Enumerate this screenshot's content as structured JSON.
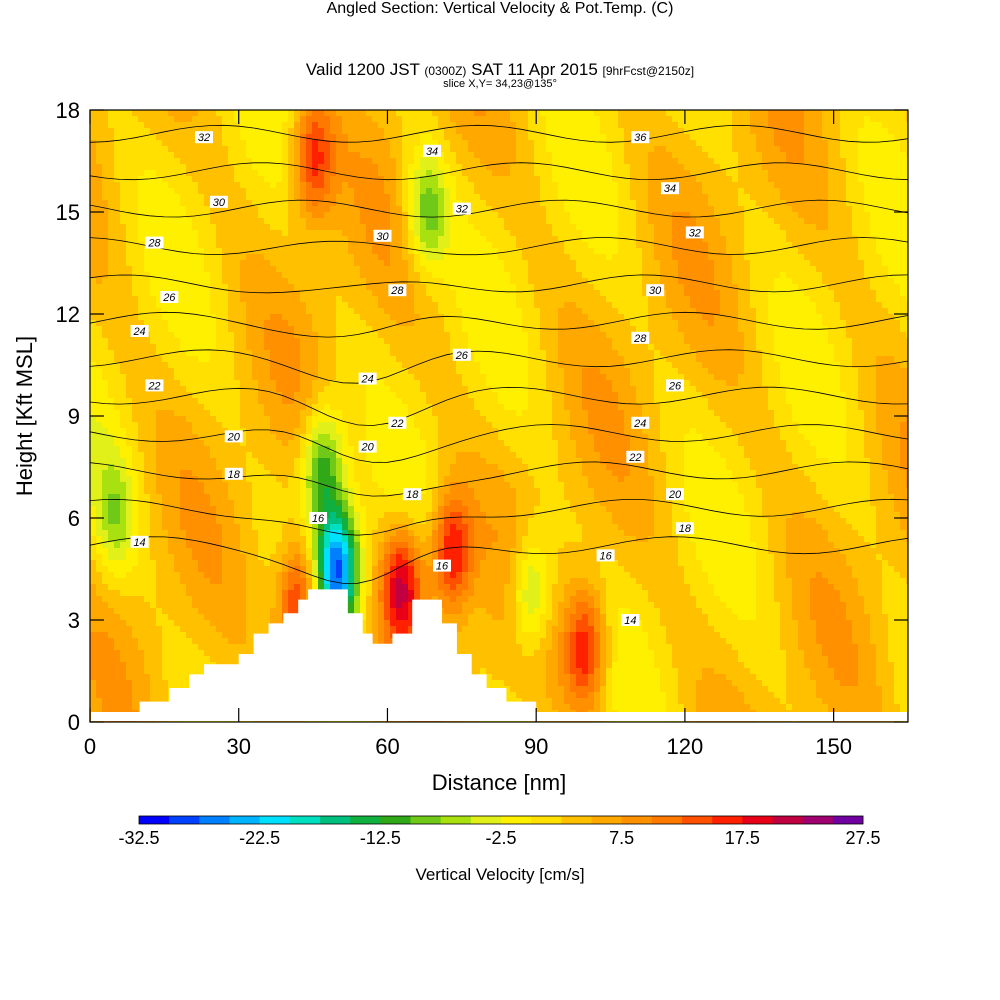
{
  "header": {
    "title": "Angled Section: Vertical Velocity & Pot.Temp.",
    "title_tag": "(C)",
    "valid_main": "Valid 1200 JST",
    "valid_utc": "(0300Z)",
    "valid_date": "SAT 11 Apr 2015",
    "forecast": "[9hrFcst@2150z]",
    "slice": "slice X,Y= 34,23@135°"
  },
  "chart_data": {
    "type": "heatmap",
    "subtype": "vertical cross-section, filled contours with line contours",
    "xlabel": "Distance [nm]",
    "ylabel": "Height [Kft MSL]",
    "xlim": [
      0,
      165
    ],
    "ylim": [
      0,
      18
    ],
    "x_ticks": [
      0,
      30,
      60,
      90,
      120,
      150
    ],
    "y_ticks": [
      0,
      3,
      6,
      9,
      12,
      15,
      18
    ],
    "fill_variable": "Vertical Velocity [cm/s]",
    "colorbar": {
      "label": "Vertical Velocity [cm/s]",
      "tick_labels": [
        "-32.5",
        "-22.5",
        "-12.5",
        "-2.5",
        "7.5",
        "17.5",
        "27.5"
      ],
      "min": -32.5,
      "max": 27.5,
      "step": 2.5,
      "colors": [
        "#0000ff",
        "#0040ff",
        "#0080ff",
        "#00b4ff",
        "#00e0ff",
        "#00e0c0",
        "#00c080",
        "#10b040",
        "#30a818",
        "#70c818",
        "#a8e010",
        "#e0f018",
        "#fff000",
        "#ffe000",
        "#ffc000",
        "#ffa800",
        "#ff9000",
        "#ff7800",
        "#ff5000",
        "#ff2000",
        "#e80018",
        "#c00040",
        "#a00070",
        "#7000a0"
      ]
    },
    "contour_variable": "Potential temperature (C)",
    "contour_levels": [
      14,
      16,
      18,
      20,
      22,
      24,
      26,
      28,
      30,
      32,
      34,
      36
    ],
    "contour_labels": [
      {
        "text": "32",
        "x": 23,
        "y": 17.2
      },
      {
        "text": "30",
        "x": 26,
        "y": 15.3
      },
      {
        "text": "28",
        "x": 13,
        "y": 14.1
      },
      {
        "text": "26",
        "x": 16,
        "y": 12.5
      },
      {
        "text": "24",
        "x": 10,
        "y": 11.5
      },
      {
        "text": "22",
        "x": 13,
        "y": 9.9
      },
      {
        "text": "20",
        "x": 29,
        "y": 8.4
      },
      {
        "text": "18",
        "x": 29,
        "y": 7.3
      },
      {
        "text": "14",
        "x": 10,
        "y": 5.3
      },
      {
        "text": "16",
        "x": 46,
        "y": 6.0
      },
      {
        "text": "20",
        "x": 56,
        "y": 8.1
      },
      {
        "text": "22",
        "x": 62,
        "y": 8.8
      },
      {
        "text": "24",
        "x": 56,
        "y": 10.1
      },
      {
        "text": "26",
        "x": 75,
        "y": 10.8
      },
      {
        "text": "28",
        "x": 62,
        "y": 12.7
      },
      {
        "text": "30",
        "x": 59,
        "y": 14.3
      },
      {
        "text": "32",
        "x": 75,
        "y": 15.1
      },
      {
        "text": "34",
        "x": 69,
        "y": 16.8
      },
      {
        "text": "18",
        "x": 65,
        "y": 6.7
      },
      {
        "text": "16",
        "x": 71,
        "y": 4.6
      },
      {
        "text": "16",
        "x": 104,
        "y": 4.9
      },
      {
        "text": "14",
        "x": 109,
        "y": 3.0
      },
      {
        "text": "18",
        "x": 120,
        "y": 5.7
      },
      {
        "text": "20",
        "x": 118,
        "y": 6.7
      },
      {
        "text": "22",
        "x": 110,
        "y": 7.8
      },
      {
        "text": "24",
        "x": 111,
        "y": 8.8
      },
      {
        "text": "26",
        "x": 118,
        "y": 9.9
      },
      {
        "text": "28",
        "x": 111,
        "y": 11.3
      },
      {
        "text": "30",
        "x": 114,
        "y": 12.7
      },
      {
        "text": "32",
        "x": 122,
        "y": 14.4
      },
      {
        "text": "34",
        "x": 117,
        "y": 15.7
      },
      {
        "text": "36",
        "x": 111,
        "y": 17.2
      }
    ],
    "terrain_profile": [
      [
        10,
        0.2
      ],
      [
        10,
        0.6
      ],
      [
        16,
        0.6
      ],
      [
        16,
        1.0
      ],
      [
        20,
        1.0
      ],
      [
        20,
        1.4
      ],
      [
        23,
        1.4
      ],
      [
        23,
        1.7
      ],
      [
        30,
        1.7
      ],
      [
        30,
        2.0
      ],
      [
        33,
        2.0
      ],
      [
        33,
        2.6
      ],
      [
        36,
        2.6
      ],
      [
        36,
        2.9
      ],
      [
        39,
        2.9
      ],
      [
        39,
        3.2
      ],
      [
        42,
        3.2
      ],
      [
        42,
        3.6
      ],
      [
        44,
        3.6
      ],
      [
        44,
        3.9
      ],
      [
        52,
        3.9
      ],
      [
        52,
        3.2
      ],
      [
        55,
        3.2
      ],
      [
        55,
        2.6
      ],
      [
        57,
        2.6
      ],
      [
        57,
        2.3
      ],
      [
        61,
        2.3
      ],
      [
        61,
        2.6
      ],
      [
        65,
        2.6
      ],
      [
        65,
        3.6
      ],
      [
        71,
        3.6
      ],
      [
        71,
        2.9
      ],
      [
        74,
        2.9
      ],
      [
        74,
        2.0
      ],
      [
        77,
        2.0
      ],
      [
        77,
        1.4
      ],
      [
        80,
        1.4
      ],
      [
        80,
        1.0
      ],
      [
        84,
        1.0
      ],
      [
        84,
        0.6
      ],
      [
        90,
        0.6
      ],
      [
        90,
        0.2
      ]
    ],
    "features": [
      {
        "kind": "strong downdraft",
        "x": 50,
        "y": 4.5,
        "value": -30
      },
      {
        "kind": "downdraft band",
        "x": 47,
        "y": 7.5,
        "value": -16
      },
      {
        "kind": "downdraft column",
        "x": 68,
        "y": 15,
        "value": -12
      },
      {
        "kind": "updraft",
        "x": 42,
        "y": 3.5,
        "value": 17
      },
      {
        "kind": "updraft",
        "x": 63,
        "y": 4.0,
        "value": 18
      },
      {
        "kind": "updraft",
        "x": 73,
        "y": 5.0,
        "value": 16
      },
      {
        "kind": "updraft",
        "x": 100,
        "y": 2.2,
        "value": 15
      },
      {
        "kind": "updraft column",
        "x": 45,
        "y": 16.5,
        "value": 14
      },
      {
        "kind": "downdraft",
        "x": 89,
        "y": 3.8,
        "value": -12
      },
      {
        "kind": "downdraft",
        "x": 5,
        "y": 6.0,
        "value": -8
      }
    ]
  }
}
